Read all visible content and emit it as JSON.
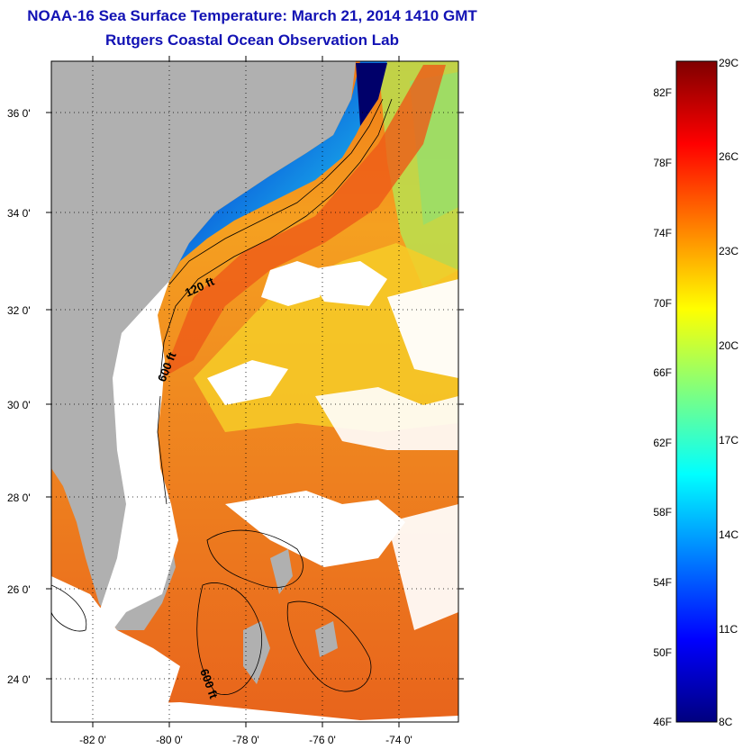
{
  "title": {
    "line1": "NOAA-16 Sea Surface Temperature:  March 21, 2014 1410 GMT",
    "line2": "Rutgers Coastal Ocean Observation Lab"
  },
  "map": {
    "lat_labels": [
      "36 0'",
      "34 0'",
      "32 0'",
      "30 0'",
      "28 0'",
      "26 0'",
      "24 0'"
    ],
    "lon_labels": [
      "-82 0'",
      "-80 0'",
      "-78 0'",
      "-76 0'",
      "-74 0'"
    ],
    "contours": [
      "120 ft",
      "600 ft",
      "600 ft"
    ]
  },
  "colorbar": {
    "fahrenheit": [
      "82F",
      "78F",
      "74F",
      "70F",
      "66F",
      "62F",
      "58F",
      "54F",
      "50F",
      "46F"
    ],
    "celsius": [
      "29C",
      "26C",
      "23C",
      "20C",
      "17C",
      "14C",
      "11C",
      "8C"
    ],
    "range_c": [
      8,
      29
    ],
    "colors": [
      "#00007f",
      "#0000ff",
      "#007fff",
      "#00ffff",
      "#7fff7f",
      "#ffff00",
      "#ff7f00",
      "#ff0000",
      "#7f0000"
    ]
  }
}
